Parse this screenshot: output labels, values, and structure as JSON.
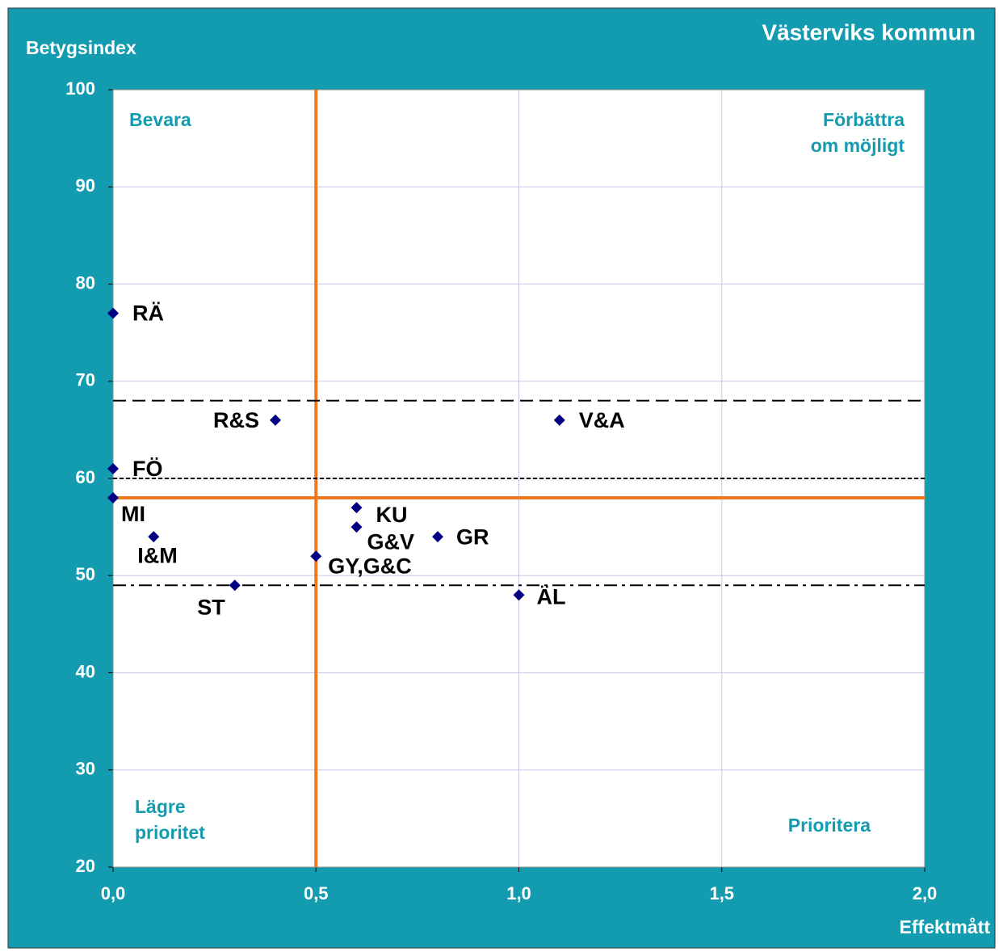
{
  "chart_data": {
    "type": "scatter",
    "title": "Västerviks kommun",
    "y_label": "Betygsindex",
    "x_label": "Effektmått",
    "xlim": [
      0,
      2
    ],
    "ylim": [
      20,
      100
    ],
    "xticks": [
      {
        "value": 0,
        "label": "0,0"
      },
      {
        "value": 0.5,
        "label": "0,5"
      },
      {
        "value": 1,
        "label": "1,0"
      },
      {
        "value": 1.5,
        "label": "1,5"
      },
      {
        "value": 2,
        "label": "2,0"
      }
    ],
    "yticks": [
      20,
      30,
      40,
      50,
      60,
      70,
      80,
      90,
      100
    ],
    "grid": true,
    "color": "#000080",
    "points": [
      {
        "label": "RÄ",
        "x": 0,
        "y": 77
      },
      {
        "label": "R&S",
        "x": 0.4,
        "y": 66
      },
      {
        "label": "V&A",
        "x": 1.1,
        "y": 66
      },
      {
        "label": "FÖ",
        "x": 0,
        "y": 61
      },
      {
        "label": "MI",
        "x": 0,
        "y": 58
      },
      {
        "label": "KU",
        "x": 0.6,
        "y": 57
      },
      {
        "label": "G&V",
        "x": 0.6,
        "y": 55
      },
      {
        "label": "GR",
        "x": 0.8,
        "y": 54
      },
      {
        "label": "I&M",
        "x": 0.1,
        "y": 54
      },
      {
        "label": "GY,G&C",
        "x": 0.5,
        "y": 52
      },
      {
        "label": "ST",
        "x": 0.3,
        "y": 49
      },
      {
        "label": "ÄL",
        "x": 1.0,
        "y": 48
      }
    ],
    "reference_lines": [
      {
        "axis": "x",
        "value": 0.5,
        "style": "solid",
        "color": "#f07820"
      },
      {
        "axis": "y",
        "value": 58,
        "style": "solid",
        "color": "#f07820"
      },
      {
        "axis": "y",
        "value": 68,
        "style": "dashed",
        "color": "#000000"
      },
      {
        "axis": "y",
        "value": 60,
        "style": "dotted",
        "color": "#000000"
      },
      {
        "axis": "y",
        "value": 49,
        "style": "dashdot",
        "color": "#000000"
      }
    ],
    "annotations": [
      {
        "lines": [
          "Bevara"
        ]
      },
      {
        "lines": [
          "Förbättra",
          "om möjligt"
        ]
      },
      {
        "lines": [
          "Lägre",
          "prioritet"
        ]
      },
      {
        "lines": [
          "Prioritera"
        ]
      }
    ]
  }
}
